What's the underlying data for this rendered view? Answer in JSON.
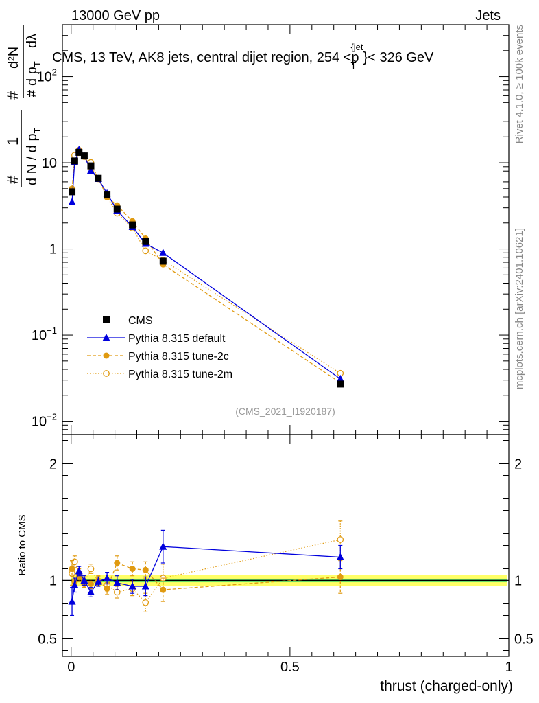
{
  "header": {
    "left_label": "13000 GeV pp",
    "right_label": "Jets",
    "side_label": "Rivet 4.1.0, ≥ 100k events",
    "side_label_2": "mcplots.cern.ch [arXiv:2401.10621]",
    "analysis_id": "(CMS_2021_I1920187)"
  },
  "colors": {
    "data": "#000000",
    "default": "#0000dd",
    "tune2c": "#e09a10",
    "tune2m": "#e09a10",
    "band_green": "#66dd66",
    "band_yellow": "#ffff66"
  },
  "chart_data": [
    {
      "type": "scatter",
      "panel": "main",
      "title": "CMS, 13 TeV, AK8 jets, central dijet region, 254 <p_T^{jet}< 326 GeV",
      "title_parts": {
        "pre": "CMS, 13 TeV, AK8 jets, central dijet region, 254 <p",
        "sub": "T",
        "sup": "{jet",
        "post": "}< 326 GeV"
      },
      "ylabel_parts": {
        "hash": "#",
        "one": "1",
        "denom": "d N / d p",
        "sub_T": "T",
        "num2": "d²N",
        "denom2": "d p",
        "dlam": "dλ"
      },
      "yscale": "log",
      "ylim": [
        0.007,
        400
      ],
      "xlim": [
        -0.02,
        1.0
      ],
      "yticks": [
        {
          "v": 0.01,
          "base": "10",
          "exp": "−2"
        },
        {
          "v": 0.1,
          "base": "10",
          "exp": "−1"
        },
        {
          "v": 1,
          "label": "1"
        },
        {
          "v": 10,
          "label": "10"
        },
        {
          "v": 100,
          "base": "10",
          "exp": "2"
        }
      ],
      "legend_position": "lower-left",
      "series": [
        {
          "name": "CMS",
          "style": "data",
          "x": [
            0.002,
            0.008,
            0.018,
            0.03,
            0.045,
            0.062,
            0.082,
            0.105,
            0.14,
            0.17,
            0.21,
            0.615
          ],
          "y": [
            4.6,
            10.5,
            13.2,
            12.0,
            9.2,
            6.6,
            4.3,
            2.9,
            1.9,
            1.22,
            0.72,
            0.027
          ]
        },
        {
          "name": "Pythia 8.315 default",
          "style": "default",
          "x": [
            0.002,
            0.008,
            0.018,
            0.03,
            0.045,
            0.062,
            0.082,
            0.105,
            0.14,
            0.17,
            0.21,
            0.615
          ],
          "y": [
            3.5,
            10.1,
            14.2,
            12.0,
            8.1,
            6.5,
            4.4,
            2.8,
            1.8,
            1.15,
            0.9,
            0.031
          ]
        },
        {
          "name": "Pythia 8.315 tune-2c",
          "style": "tune2c",
          "x": [
            0.002,
            0.008,
            0.018,
            0.03,
            0.045,
            0.062,
            0.082,
            0.105,
            0.14,
            0.17,
            0.21,
            0.615
          ],
          "y": [
            5.0,
            10.4,
            13.6,
            12.0,
            8.9,
            6.6,
            4.0,
            3.2,
            2.1,
            1.32,
            0.66,
            0.028
          ]
        },
        {
          "name": "Pythia 8.315 tune-2m",
          "style": "tune2m",
          "x": [
            0.002,
            0.008,
            0.018,
            0.03,
            0.045,
            0.062,
            0.082,
            0.105,
            0.14,
            0.17,
            0.21,
            0.615
          ],
          "y": [
            4.9,
            12.2,
            14.0,
            11.8,
            10.1,
            6.5,
            4.0,
            2.6,
            1.75,
            0.95,
            0.74,
            0.036
          ]
        }
      ]
    },
    {
      "type": "scatter",
      "panel": "ratio",
      "ylabel": "Ratio to CMS",
      "xlabel": "thrust (charged-only)",
      "xlim": [
        -0.02,
        1.0
      ],
      "ylim": [
        0.35,
        2.25
      ],
      "xticks": [
        {
          "v": 0,
          "label": "0"
        },
        {
          "v": 0.5,
          "label": "0.5"
        },
        {
          "v": 1,
          "label": "1"
        }
      ],
      "yticks": [
        {
          "v": 0.5,
          "label": "0.5"
        },
        {
          "v": 1,
          "label": "1"
        },
        {
          "v": 2,
          "label": "2"
        }
      ],
      "band": {
        "green": [
          0.985,
          1.015
        ],
        "yellow": [
          0.95,
          1.05
        ]
      },
      "series": [
        {
          "name": "Pythia 8.315 default",
          "style": "default",
          "x": [
            0.002,
            0.008,
            0.018,
            0.03,
            0.045,
            0.062,
            0.082,
            0.105,
            0.14,
            0.17,
            0.21,
            0.615
          ],
          "y": [
            0.82,
            0.96,
            1.08,
            1.0,
            0.9,
            0.99,
            1.02,
            0.98,
            0.95,
            0.95,
            1.29,
            1.2
          ],
          "err": [
            0.12,
            0.06,
            0.04,
            0.04,
            0.04,
            0.04,
            0.05,
            0.06,
            0.06,
            0.08,
            0.14,
            0.1
          ]
        },
        {
          "name": "Pythia 8.315 tune-2c",
          "style": "tune2c",
          "x": [
            0.002,
            0.008,
            0.018,
            0.03,
            0.045,
            0.062,
            0.082,
            0.105,
            0.14,
            0.17,
            0.21,
            0.615
          ],
          "y": [
            1.1,
            0.99,
            1.03,
            0.97,
            0.97,
            1.0,
            0.93,
            1.15,
            1.1,
            1.09,
            0.92,
            1.03
          ],
          "err": [
            0.07,
            0.04,
            0.04,
            0.03,
            0.04,
            0.04,
            0.05,
            0.06,
            0.06,
            0.07,
            0.1,
            0.14
          ]
        },
        {
          "name": "Pythia 8.315 tune-2m",
          "style": "tune2m",
          "x": [
            0.002,
            0.008,
            0.018,
            0.03,
            0.045,
            0.062,
            0.082,
            0.105,
            0.14,
            0.17,
            0.21,
            0.615
          ],
          "y": [
            1.06,
            1.16,
            1.06,
            0.98,
            1.1,
            0.99,
            0.96,
            0.9,
            0.93,
            0.81,
            1.02,
            1.35
          ],
          "err": [
            0.1,
            0.05,
            0.04,
            0.04,
            0.04,
            0.04,
            0.05,
            0.05,
            0.06,
            0.08,
            0.12,
            0.16
          ]
        }
      ]
    }
  ]
}
